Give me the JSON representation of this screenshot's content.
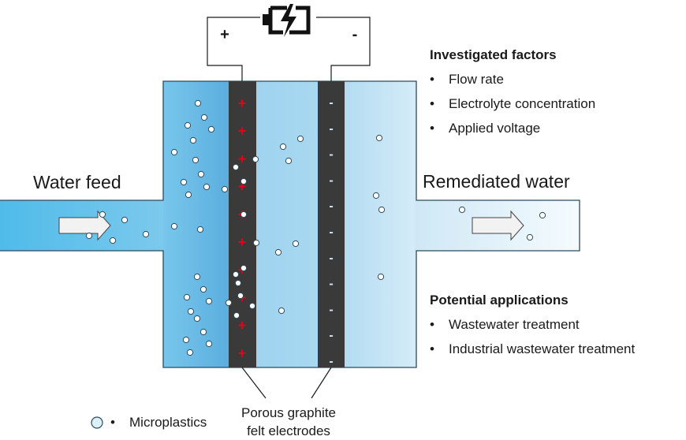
{
  "diagram": {
    "labels": {
      "water_feed": "Water feed",
      "remediated_water": "Remediated water",
      "plus_terminal": "+",
      "minus_terminal": "-",
      "electrodes_caption_line1": "Porous graphite",
      "electrodes_caption_line2": "felt electrodes",
      "legend_microplastics": "Microplastics"
    },
    "investigated_factors": {
      "heading": "Investigated factors",
      "items": [
        "Flow rate",
        "Electrolyte concentration",
        "Applied voltage"
      ]
    },
    "potential_applications": {
      "heading": "Potential applications",
      "items": [
        "Wastewater treatment",
        "Industrial wastewater treatment"
      ]
    },
    "anode_signs": [
      "+",
      "+",
      "+",
      "+",
      "+",
      "+",
      "+",
      "+",
      "+",
      "+"
    ],
    "cathode_signs": [
      "-",
      "-",
      "-",
      "-",
      "-",
      "-",
      "-",
      "-",
      "-",
      "-",
      "-"
    ],
    "colors": {
      "anode": "#3a3a3a",
      "cathode": "#3a3a3a",
      "plus_sign": "#e3001b",
      "water_inlet": "#5cc0ec",
      "water_outlet": "#e3f3fb",
      "particle_fill": "#ddf0f9",
      "outline": "#2e4a5a"
    },
    "icons": [
      "battery-charging-icon",
      "flow-arrow-icon",
      "microplastic-particle-icon"
    ]
  }
}
